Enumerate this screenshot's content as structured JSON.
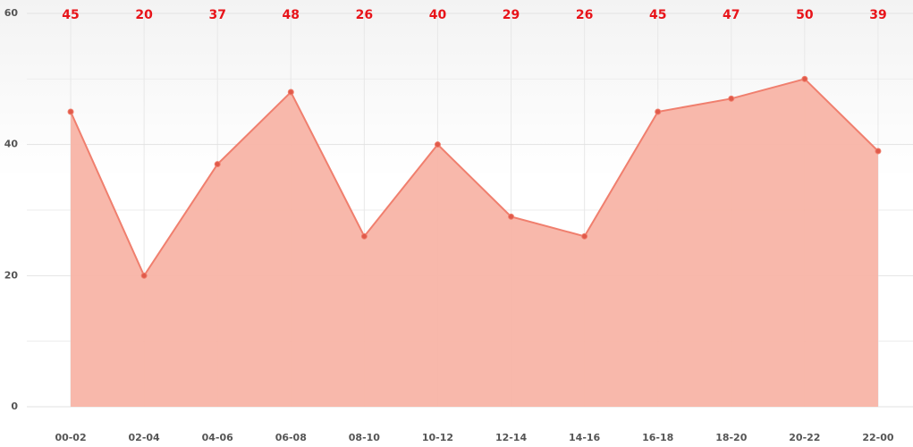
{
  "chart_data": {
    "type": "area",
    "categories": [
      "00-02",
      "02-04",
      "04-06",
      "06-08",
      "08-10",
      "10-12",
      "12-14",
      "14-16",
      "16-18",
      "18-20",
      "20-22",
      "22-00"
    ],
    "values": [
      45,
      20,
      37,
      48,
      26,
      40,
      29,
      26,
      45,
      47,
      50,
      39
    ],
    "color": "#f07f6e",
    "fill": "#f8b4a6",
    "point_color": "#e05a4a",
    "label_color": "#e8141a",
    "ylim": [
      0,
      60
    ],
    "yticks": [
      0,
      20,
      40,
      60
    ],
    "minor_yticks": [
      10,
      30,
      50
    ],
    "grid": true
  }
}
